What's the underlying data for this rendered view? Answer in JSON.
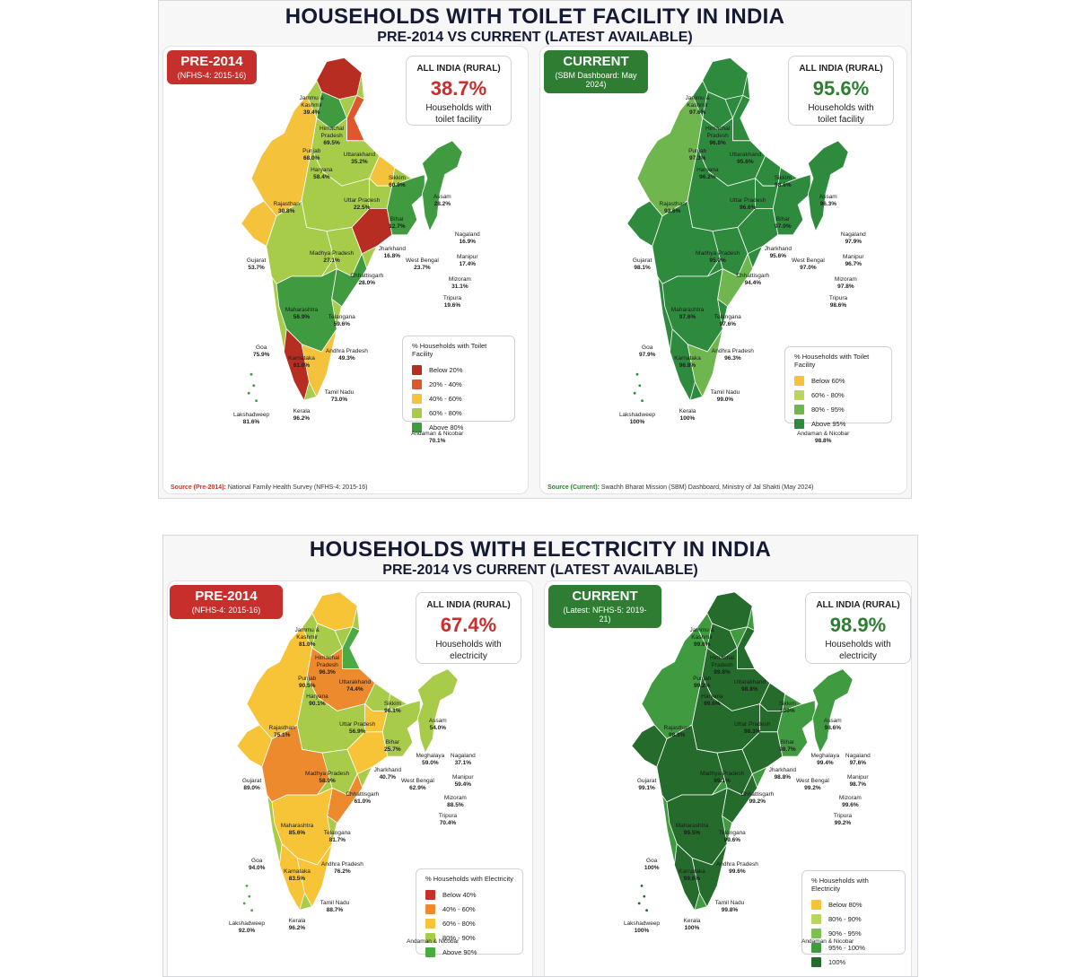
{
  "infographics": [
    {
      "title": "HOUSEHOLDS WITH TOILET FACILITY IN INDIA",
      "subtitle": "PRE-2014 VS CURRENT (LATEST AVAILABLE)",
      "panels": [
        {
          "badge_title": "PRE-2014",
          "badge_sub": "(NFHS-4: 2015-16)",
          "badge_color": "#c62f2b",
          "stat_label": "ALL INDIA (RURAL)",
          "stat_value": "38.7%",
          "stat_desc_1": "Households with",
          "stat_desc_2": "toilet facility",
          "legend_title": "% Households with Toilet Facility",
          "legend": [
            {
              "label": "Below 20%",
              "color": "#b72d22"
            },
            {
              "label": "20% - 40%",
              "color": "#e0562d"
            },
            {
              "label": "40% - 60%",
              "color": "#f5c23c"
            },
            {
              "label": "60% - 80%",
              "color": "#a6cc4a"
            },
            {
              "label": "Above 80%",
              "color": "#3f9a40"
            }
          ],
          "source_key": "Source (Pre-2014):",
          "source_text": "National Family Health Survey (NFHS-4: 2015-16)",
          "states": [
            {
              "name": "Jammu &",
              "name2": "Kashmir",
              "value": "39.4%"
            },
            {
              "name": "Himachal",
              "name2": "Pradesh",
              "value": "69.5%"
            },
            {
              "name": "Punjab",
              "value": "68.0%"
            },
            {
              "name": "Uttarakhand",
              "value": "35.2%"
            },
            {
              "name": "Haryana",
              "value": "58.4%"
            },
            {
              "name": "Sikkim",
              "value": "60.9%"
            },
            {
              "name": "Rajasthan",
              "value": "30.8%"
            },
            {
              "name": "Uttar Pradesh",
              "value": "22.5%"
            },
            {
              "name": "Assam",
              "value": "28.2%"
            },
            {
              "name": "Bihar",
              "value": "12.7%"
            },
            {
              "name": "Nagaland",
              "value": "16.9%"
            },
            {
              "name": "Gujarat",
              "value": "53.7%"
            },
            {
              "name": "Madhya Pradesh",
              "value": "27.1%"
            },
            {
              "name": "Jharkhand",
              "value": "16.8%"
            },
            {
              "name": "West Bengal",
              "value": "23.7%"
            },
            {
              "name": "Manipur",
              "value": "17.4%"
            },
            {
              "name": "Chhattisgarh",
              "value": "28.0%"
            },
            {
              "name": "Mizoram",
              "value": "31.1%"
            },
            {
              "name": "Maharashtra",
              "value": "56.9%"
            },
            {
              "name": "Telangana",
              "value": "59.6%"
            },
            {
              "name": "Tripura",
              "value": "19.6%"
            },
            {
              "name": "Andhra Pradesh",
              "value": "49.3%"
            },
            {
              "name": "Goa",
              "value": "75.9%"
            },
            {
              "name": "Karnataka",
              "value": "61.0%"
            },
            {
              "name": "Tamil Nadu",
              "value": "73.0%"
            },
            {
              "name": "Kerala",
              "value": "96.2%"
            },
            {
              "name": "Lakshadweep",
              "value": "81.6%"
            },
            {
              "name": "Andaman & Nicobar",
              "value": "70.1%"
            }
          ]
        },
        {
          "badge_title": "CURRENT",
          "badge_sub": "(SBM Dashboard: May 2024)",
          "badge_color": "#2e7d32",
          "stat_label": "ALL INDIA (RURAL)",
          "stat_value": "95.6%",
          "stat_desc_1": "Households with",
          "stat_desc_2": "toilet facility",
          "legend_title": "% Households with Toilet Facility",
          "legend": [
            {
              "label": "Below 60%",
              "color": "#f5c23c"
            },
            {
              "label": "60% - 80%",
              "color": "#b8d65a"
            },
            {
              "label": "80% - 95%",
              "color": "#6fb64e"
            },
            {
              "label": "Above 95%",
              "color": "#2e8b3e"
            }
          ],
          "source_key": "Source (Current):",
          "source_text": "Swachh Bharat Mission (SBM) Dashboard, Ministry of Jal Shakti (May 2024)",
          "states": [
            {
              "name": "Jammu &",
              "name2": "Kashmir",
              "value": "97.6%"
            },
            {
              "name": "Himachal",
              "name2": "Pradesh",
              "value": "96.8%"
            },
            {
              "name": "Punjab",
              "value": "97.3%"
            },
            {
              "name": "Uttarakhand",
              "value": "95.6%"
            },
            {
              "name": "Haryana",
              "value": "96.2%"
            },
            {
              "name": "Sikkim",
              "value": "98.6%"
            },
            {
              "name": "Rajasthan",
              "value": "93.6%"
            },
            {
              "name": "Uttar Pradesh",
              "value": "96.6%"
            },
            {
              "name": "Assam",
              "value": "96.3%"
            },
            {
              "name": "Bihar",
              "value": "97.0%"
            },
            {
              "name": "Nagaland",
              "value": "97.9%"
            },
            {
              "name": "Gujarat",
              "value": "98.1%"
            },
            {
              "name": "Madhya Pradesh",
              "value": "95.0%"
            },
            {
              "name": "Jharkhand",
              "value": "95.6%"
            },
            {
              "name": "West Bengal",
              "value": "97.0%"
            },
            {
              "name": "Manipur",
              "value": "96.7%"
            },
            {
              "name": "Chhattisgarh",
              "value": "94.4%"
            },
            {
              "name": "Mizoram",
              "value": "97.8%"
            },
            {
              "name": "Maharashtra",
              "value": "97.6%"
            },
            {
              "name": "Telangana",
              "value": "97.6%"
            },
            {
              "name": "Tripura",
              "value": "98.6%"
            },
            {
              "name": "Andhra Pradesh",
              "value": "96.3%"
            },
            {
              "name": "Goa",
              "value": "97.9%"
            },
            {
              "name": "Karnataka",
              "value": "96.8%"
            },
            {
              "name": "Tamil Nadu",
              "value": "99.0%"
            },
            {
              "name": "Kerala",
              "value": "100%"
            },
            {
              "name": "Lakshadweep",
              "value": "100%"
            },
            {
              "name": "Andaman & Nicobar",
              "value": "98.8%"
            }
          ]
        }
      ]
    },
    {
      "title": "HOUSEHOLDS WITH ELECTRICITY IN INDIA",
      "subtitle": "PRE-2014 VS CURRENT (LATEST AVAILABLE)",
      "panels": [
        {
          "badge_title": "PRE-2014",
          "badge_sub": "(NFHS-4: 2015-16)",
          "badge_color": "#c62f2b",
          "stat_label": "ALL INDIA (RURAL)",
          "stat_value": "67.4%",
          "stat_desc_1": "Households with",
          "stat_desc_2": "electricity",
          "legend_title": "% Households with Electricity",
          "legend": [
            {
              "label": "Below 40%",
              "color": "#c8312b"
            },
            {
              "label": "40% - 60%",
              "color": "#ee8a2e"
            },
            {
              "label": "60% - 80%",
              "color": "#f7c438"
            },
            {
              "label": "80% - 90%",
              "color": "#a8cc4a"
            },
            {
              "label": "Above 90%",
              "color": "#4caa45"
            }
          ],
          "states": [
            {
              "name": "Jammu &",
              "name2": "Kashmir",
              "value": "81.0%"
            },
            {
              "name": "Himachal",
              "name2": "Pradesh",
              "value": "96.3%"
            },
            {
              "name": "Punjab",
              "value": "90.5%"
            },
            {
              "name": "Uttarakhand",
              "value": "74.4%"
            },
            {
              "name": "Haryana",
              "value": "90.1%"
            },
            {
              "name": "Sikkim",
              "value": "96.1%"
            },
            {
              "name": "Rajasthan",
              "value": "75.1%"
            },
            {
              "name": "Uttar Pradesh",
              "value": "56.9%"
            },
            {
              "name": "Assam",
              "value": "54.0%"
            },
            {
              "name": "Bihar",
              "value": "25.7%"
            },
            {
              "name": "Nagaland",
              "value": "37.1%"
            },
            {
              "name": "Meghalaya",
              "value": "59.0%"
            },
            {
              "name": "Gujarat",
              "value": "89.0%"
            },
            {
              "name": "Madhya Pradesh",
              "value": "58.0%"
            },
            {
              "name": "Jharkhand",
              "value": "40.7%"
            },
            {
              "name": "West Bengal",
              "value": "62.9%"
            },
            {
              "name": "Manipur",
              "value": "59.4%"
            },
            {
              "name": "Chhattisgarh",
              "value": "61.0%"
            },
            {
              "name": "Mizoram",
              "value": "88.5%"
            },
            {
              "name": "Maharashtra",
              "value": "85.6%"
            },
            {
              "name": "Tripura",
              "value": "70.4%"
            },
            {
              "name": "Telangana",
              "value": "81.7%"
            },
            {
              "name": "Goa",
              "value": "94.0%"
            },
            {
              "name": "Andhra Pradesh",
              "value": "76.2%"
            },
            {
              "name": "Karnataka",
              "value": "83.5%"
            },
            {
              "name": "Tamil Nadu",
              "value": "88.7%"
            },
            {
              "name": "Lakshadweep",
              "value": "92.0%"
            },
            {
              "name": "Kerala",
              "value": "96.2%"
            },
            {
              "name": "Andaman & Nicobar",
              "value": ""
            }
          ]
        },
        {
          "badge_title": "CURRENT",
          "badge_sub": "(Latest: NFHS-5: 2019-21)",
          "badge_color": "#2e7d32",
          "stat_label": "ALL INDIA (RURAL)",
          "stat_value": "98.9%",
          "stat_desc_1": "Households with",
          "stat_desc_2": "electricity",
          "legend_title": "% Households with Electricity",
          "legend": [
            {
              "label": "Below 80%",
              "color": "#f5c23c"
            },
            {
              "label": "80% - 90%",
              "color": "#b8d65a"
            },
            {
              "label": "90% - 95%",
              "color": "#7cbf52"
            },
            {
              "label": "95% - 100%",
              "color": "#3f9a40"
            },
            {
              "label": "100%",
              "color": "#246b2c"
            }
          ],
          "states": [
            {
              "name": "Jammu &",
              "name2": "Kashmir",
              "value": "99.6%"
            },
            {
              "name": "Himachal",
              "name2": "Pradesh",
              "value": "99.8%"
            },
            {
              "name": "Punjab",
              "value": "99.2%"
            },
            {
              "name": "Uttarakhand",
              "value": "98.8%"
            },
            {
              "name": "Haryana",
              "value": "99.6%"
            },
            {
              "name": "Sikkim",
              "value": "100%"
            },
            {
              "name": "Rajasthan",
              "value": "98.3%"
            },
            {
              "name": "Uttar Pradesh",
              "value": "98.3%"
            },
            {
              "name": "Assam",
              "value": "98.6%"
            },
            {
              "name": "Bihar",
              "value": "98.7%"
            },
            {
              "name": "Nagaland",
              "value": "97.6%"
            },
            {
              "name": "Meghalaya",
              "value": "99.4%"
            },
            {
              "name": "Gujarat",
              "value": "99.1%"
            },
            {
              "name": "Madhya Pradesh",
              "value": "99.1%"
            },
            {
              "name": "Jharkhand",
              "value": "98.8%"
            },
            {
              "name": "West Bengal",
              "value": "99.2%"
            },
            {
              "name": "Manipur",
              "value": "98.7%"
            },
            {
              "name": "Chhattisgarh",
              "value": "99.2%"
            },
            {
              "name": "Mizoram",
              "value": "99.6%"
            },
            {
              "name": "Maharashtra",
              "value": "99.5%"
            },
            {
              "name": "Tripura",
              "value": "99.2%"
            },
            {
              "name": "Telangana",
              "value": "99.6%"
            },
            {
              "name": "Goa",
              "value": "100%"
            },
            {
              "name": "Andhra Pradesh",
              "value": "99.6%"
            },
            {
              "name": "Karnataka",
              "value": "99.6%"
            },
            {
              "name": "Tamil Nadu",
              "value": "99.8%"
            },
            {
              "name": "Lakshadweep",
              "value": "100%"
            },
            {
              "name": "Kerala",
              "value": "100%"
            },
            {
              "name": "Andaman & Nicobar",
              "value": ""
            }
          ]
        }
      ]
    }
  ]
}
